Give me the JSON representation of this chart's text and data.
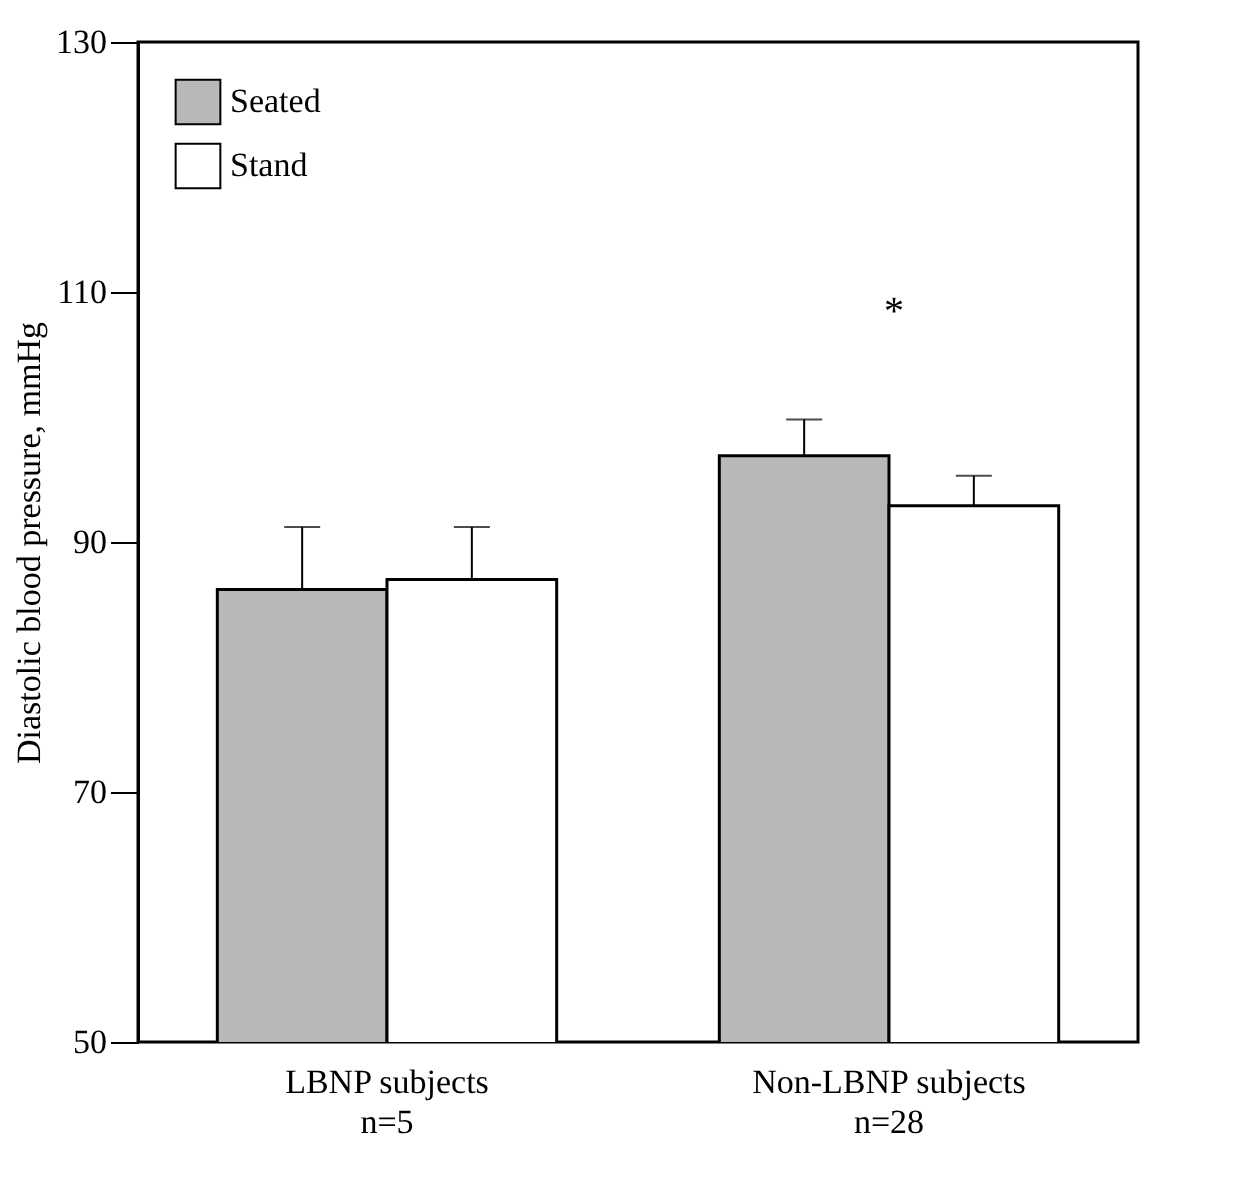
{
  "chart_data": {
    "type": "bar",
    "ylabel": "Diastolic blood pressure, mmHg",
    "categories": [
      "LBNP subjects\nn=5",
      "Non-LBNP subjects\nn=28"
    ],
    "series": [
      {
        "name": "Seated",
        "color": "#b8b8b8",
        "values": [
          86.2,
          96.9
        ],
        "errors": [
          [
            86.2,
            91.2
          ],
          [
            96.9,
            99.8
          ]
        ]
      },
      {
        "name": "Stand",
        "color": "#ffffff",
        "values": [
          87.0,
          92.9
        ],
        "errors": [
          [
            87.0,
            91.2
          ],
          [
            92.9,
            95.3
          ]
        ]
      }
    ],
    "ylim": [
      50,
      130
    ],
    "yticks": [
      50,
      70,
      90,
      110,
      130
    ],
    "annotations": [
      "*"
    ],
    "grid": false,
    "legend": "top left"
  }
}
